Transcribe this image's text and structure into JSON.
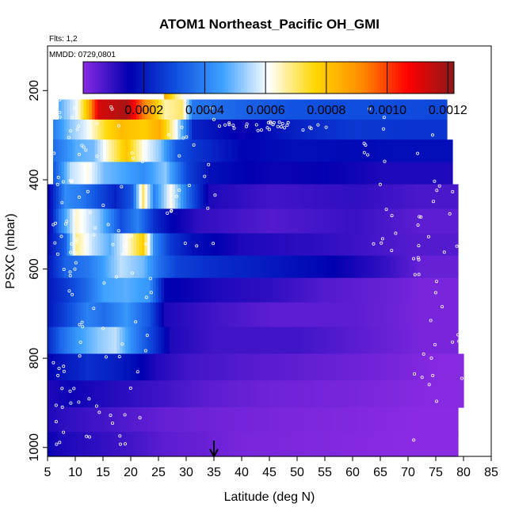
{
  "chart_data": {
    "type": "heatmap",
    "title": "ATOM1 Northeast_Pacific OH_GMI",
    "annotations": [
      "Flts: 1,2",
      "MMDD: 0729,0801"
    ],
    "xlabel": "Latitude (deg N)",
    "ylabel": "PSXC (mbar)",
    "xlim": [
      5,
      85
    ],
    "ylim": [
      1020,
      100
    ],
    "x_ticks": [
      "5",
      "10",
      "15",
      "20",
      "25",
      "30",
      "35",
      "40",
      "45",
      "50",
      "55",
      "60",
      "65",
      "70",
      "75",
      "80",
      "85"
    ],
    "y_ticks": [
      "200",
      "400",
      "600",
      "800",
      "1000"
    ],
    "colorbar": {
      "min": 0.0,
      "max": 0.00122,
      "tick_values": [
        0.0002,
        0.0004,
        0.0006,
        0.0008,
        0.001,
        0.0012
      ],
      "tick_labels": [
        "0.0002",
        "0.0004",
        "0.0006",
        "0.0008",
        "0.0010",
        "0.0012"
      ],
      "colors": [
        "#8a2be2",
        "#0000b0",
        "#1050e0",
        "#3ca0ff",
        "#ffffff",
        "#ffd700",
        "#ff8c00",
        "#ff0000",
        "#8b1a1a"
      ]
    },
    "marker": {
      "x": 35,
      "label": "arrow"
    },
    "rows": [
      {
        "p0": 180,
        "p1": 220,
        "x0": 26,
        "x1": 31,
        "segments": [
          [
            26,
            0.00085
          ],
          [
            28,
            0.00068
          ],
          [
            29.5,
            0.0006
          ]
        ]
      },
      {
        "p0": 220,
        "p1": 265,
        "x0": 7,
        "x1": 77,
        "segments": [
          [
            7,
            0.00048
          ],
          [
            10,
            0.0006
          ],
          [
            12,
            0.00082
          ],
          [
            14,
            0.00112
          ],
          [
            19,
            0.00118
          ],
          [
            22,
            0.00094
          ],
          [
            24,
            0.00082
          ],
          [
            26,
            0.00066
          ],
          [
            29,
            0.0007
          ],
          [
            31,
            0.00038
          ],
          [
            35,
            0.00036
          ],
          [
            45,
            0.00032
          ],
          [
            55,
            0.0003
          ],
          [
            65,
            0.0003
          ],
          [
            75,
            0.00029
          ]
        ]
      },
      {
        "p0": 265,
        "p1": 310,
        "x0": 6,
        "x1": 77,
        "segments": [
          [
            6,
            0.0004
          ],
          [
            9,
            0.00052
          ],
          [
            12,
            0.0006
          ],
          [
            15,
            0.00074
          ],
          [
            18,
            0.00082
          ],
          [
            22,
            0.00078
          ],
          [
            25,
            0.00085
          ],
          [
            28,
            0.0006
          ],
          [
            31,
            0.00022
          ],
          [
            40,
            0.00014
          ],
          [
            50,
            0.00022
          ],
          [
            60,
            0.00026
          ],
          [
            70,
            0.00025
          ]
        ]
      },
      {
        "p0": 310,
        "p1": 360,
        "x0": 6,
        "x1": 78,
        "segments": [
          [
            6,
            0.00036
          ],
          [
            10,
            0.00048
          ],
          [
            13,
            0.0005
          ],
          [
            16,
            0.00066
          ],
          [
            19,
            0.0008
          ],
          [
            22,
            0.00062
          ],
          [
            25,
            0.00052
          ],
          [
            28,
            0.00032
          ],
          [
            31,
            0.00026
          ],
          [
            40,
            0.00016
          ],
          [
            50,
            0.00018
          ],
          [
            60,
            0.00017
          ],
          [
            70,
            0.00018
          ]
        ]
      },
      {
        "p0": 360,
        "p1": 410,
        "x0": 6,
        "x1": 78,
        "segments": [
          [
            6,
            0.00032
          ],
          [
            9,
            0.00056
          ],
          [
            12,
            0.00062
          ],
          [
            15,
            0.0005
          ],
          [
            19,
            0.00046
          ],
          [
            22,
            0.00042
          ],
          [
            26,
            0.00052
          ],
          [
            30,
            0.00028
          ],
          [
            34,
            0.00018
          ],
          [
            45,
            0.00014
          ],
          [
            55,
            0.00015
          ],
          [
            65,
            0.00012
          ],
          [
            72,
            0.00012
          ]
        ]
      },
      {
        "p0": 410,
        "p1": 465,
        "x0": 5,
        "x1": 79,
        "segments": [
          [
            5,
            0.00016
          ],
          [
            8,
            0.00042
          ],
          [
            11,
            0.00038
          ],
          [
            14,
            0.0003
          ],
          [
            17,
            0.00022
          ],
          [
            20,
            0.00032
          ],
          [
            22,
            0.0007
          ],
          [
            24,
            0.0004
          ],
          [
            27,
            0.00062
          ],
          [
            30,
            0.00036
          ],
          [
            34,
            0.00012
          ],
          [
            45,
            8e-05
          ],
          [
            60,
            0.0001
          ],
          [
            72,
            7e-05
          ]
        ]
      },
      {
        "p0": 465,
        "p1": 520,
        "x0": 5,
        "x1": 79,
        "segments": [
          [
            5,
            0.00014
          ],
          [
            7,
            0.00038
          ],
          [
            10,
            0.00064
          ],
          [
            14,
            0.00052
          ],
          [
            18,
            0.0003
          ],
          [
            21,
            0.0004
          ],
          [
            24,
            0.00024
          ],
          [
            27,
            0.00016
          ],
          [
            32,
            0.0001
          ],
          [
            45,
            6e-05
          ],
          [
            60,
            9e-05
          ],
          [
            72,
            5e-05
          ]
        ]
      },
      {
        "p0": 520,
        "p1": 570,
        "x0": 5,
        "x1": 79,
        "segments": [
          [
            5,
            0.00018
          ],
          [
            8,
            0.00034
          ],
          [
            10,
            0.00068
          ],
          [
            13,
            0.00056
          ],
          [
            16,
            0.00048
          ],
          [
            19,
            0.00062
          ],
          [
            22,
            0.00078
          ],
          [
            24,
            0.00042
          ],
          [
            27,
            0.00026
          ],
          [
            31,
            0.00018
          ],
          [
            40,
            0.00012
          ],
          [
            55,
            0.0001
          ],
          [
            70,
            6e-05
          ]
        ]
      },
      {
        "p0": 570,
        "p1": 620,
        "x0": 5,
        "x1": 79,
        "segments": [
          [
            5,
            0.0002
          ],
          [
            8,
            0.00034
          ],
          [
            12,
            0.00038
          ],
          [
            15,
            0.00046
          ],
          [
            18,
            0.00056
          ],
          [
            22,
            0.0005
          ],
          [
            25,
            0.00036
          ],
          [
            28,
            0.00028
          ],
          [
            34,
            0.00024
          ],
          [
            45,
            0.0002
          ],
          [
            55,
            0.00016
          ],
          [
            65,
            0.0001
          ],
          [
            72,
            4e-05
          ]
        ]
      },
      {
        "p0": 620,
        "p1": 675,
        "x0": 5,
        "x1": 79,
        "segments": [
          [
            5,
            0.0002
          ],
          [
            8,
            0.00026
          ],
          [
            12,
            0.00036
          ],
          [
            15,
            0.00046
          ],
          [
            19,
            0.00048
          ],
          [
            23,
            0.00044
          ],
          [
            26,
            0.00016
          ],
          [
            35,
            0.00012
          ],
          [
            45,
            0.0001
          ],
          [
            55,
            6e-05
          ],
          [
            65,
            4e-05
          ],
          [
            72,
            2e-05
          ]
        ]
      },
      {
        "p0": 675,
        "p1": 730,
        "x0": 5,
        "x1": 79,
        "segments": [
          [
            5,
            0.0002
          ],
          [
            8,
            0.00028
          ],
          [
            12,
            0.0004
          ],
          [
            15,
            0.00036
          ],
          [
            19,
            0.00044
          ],
          [
            23,
            0.00032
          ],
          [
            26,
            0.00012
          ],
          [
            35,
            8e-05
          ],
          [
            45,
            5e-05
          ],
          [
            60,
            5e-05
          ],
          [
            72,
            2e-05
          ]
        ]
      },
      {
        "p0": 730,
        "p1": 790,
        "x0": 5,
        "x1": 79,
        "segments": [
          [
            5,
            0.00024
          ],
          [
            7,
            0.00034
          ],
          [
            10,
            0.00044
          ],
          [
            14,
            0.00052
          ],
          [
            17,
            0.00056
          ],
          [
            20,
            0.00042
          ],
          [
            24,
            0.00026
          ],
          [
            27,
            0.00012
          ],
          [
            35,
            8e-05
          ],
          [
            50,
            8e-05
          ],
          [
            65,
            4e-05
          ],
          [
            72,
            2e-05
          ]
        ]
      },
      {
        "p0": 790,
        "p1": 850,
        "x0": 5,
        "x1": 80,
        "segments": [
          [
            5,
            0.00016
          ],
          [
            8,
            0.0002
          ],
          [
            12,
            0.00024
          ],
          [
            16,
            0.00022
          ],
          [
            20,
            0.00018
          ],
          [
            24,
            0.00012
          ],
          [
            30,
            8e-05
          ],
          [
            40,
            6e-05
          ],
          [
            55,
            4e-05
          ],
          [
            68,
            2e-05
          ],
          [
            75,
            5e-06
          ]
        ]
      },
      {
        "p0": 850,
        "p1": 910,
        "x0": 5,
        "x1": 80,
        "segments": [
          [
            5,
            0.00012
          ],
          [
            9,
            0.00014
          ],
          [
            14,
            0.00012
          ],
          [
            20,
            0.0001
          ],
          [
            26,
            8e-05
          ],
          [
            34,
            5e-05
          ],
          [
            45,
            3e-05
          ],
          [
            60,
            2e-05
          ],
          [
            72,
            5e-06
          ]
        ]
      },
      {
        "p0": 910,
        "p1": 965,
        "x0": 5,
        "x1": 79,
        "segments": [
          [
            5,
            0.00012
          ],
          [
            8,
            0.0001
          ],
          [
            14,
            8e-05
          ],
          [
            20,
            6e-05
          ],
          [
            26,
            4e-05
          ],
          [
            34,
            3e-05
          ],
          [
            45,
            2e-05
          ],
          [
            60,
            1e-05
          ],
          [
            72,
            0.0
          ]
        ]
      },
      {
        "p0": 965,
        "p1": 1020,
        "x0": 5,
        "x1": 79,
        "segments": [
          [
            5,
            0.00014
          ],
          [
            8,
            0.00012
          ],
          [
            14,
            0.0001
          ],
          [
            20,
            8e-05
          ],
          [
            26,
            5e-05
          ],
          [
            32,
            4e-05
          ],
          [
            40,
            2e-05
          ],
          [
            55,
            1e-05
          ],
          [
            70,
            0.0
          ]
        ]
      }
    ]
  }
}
